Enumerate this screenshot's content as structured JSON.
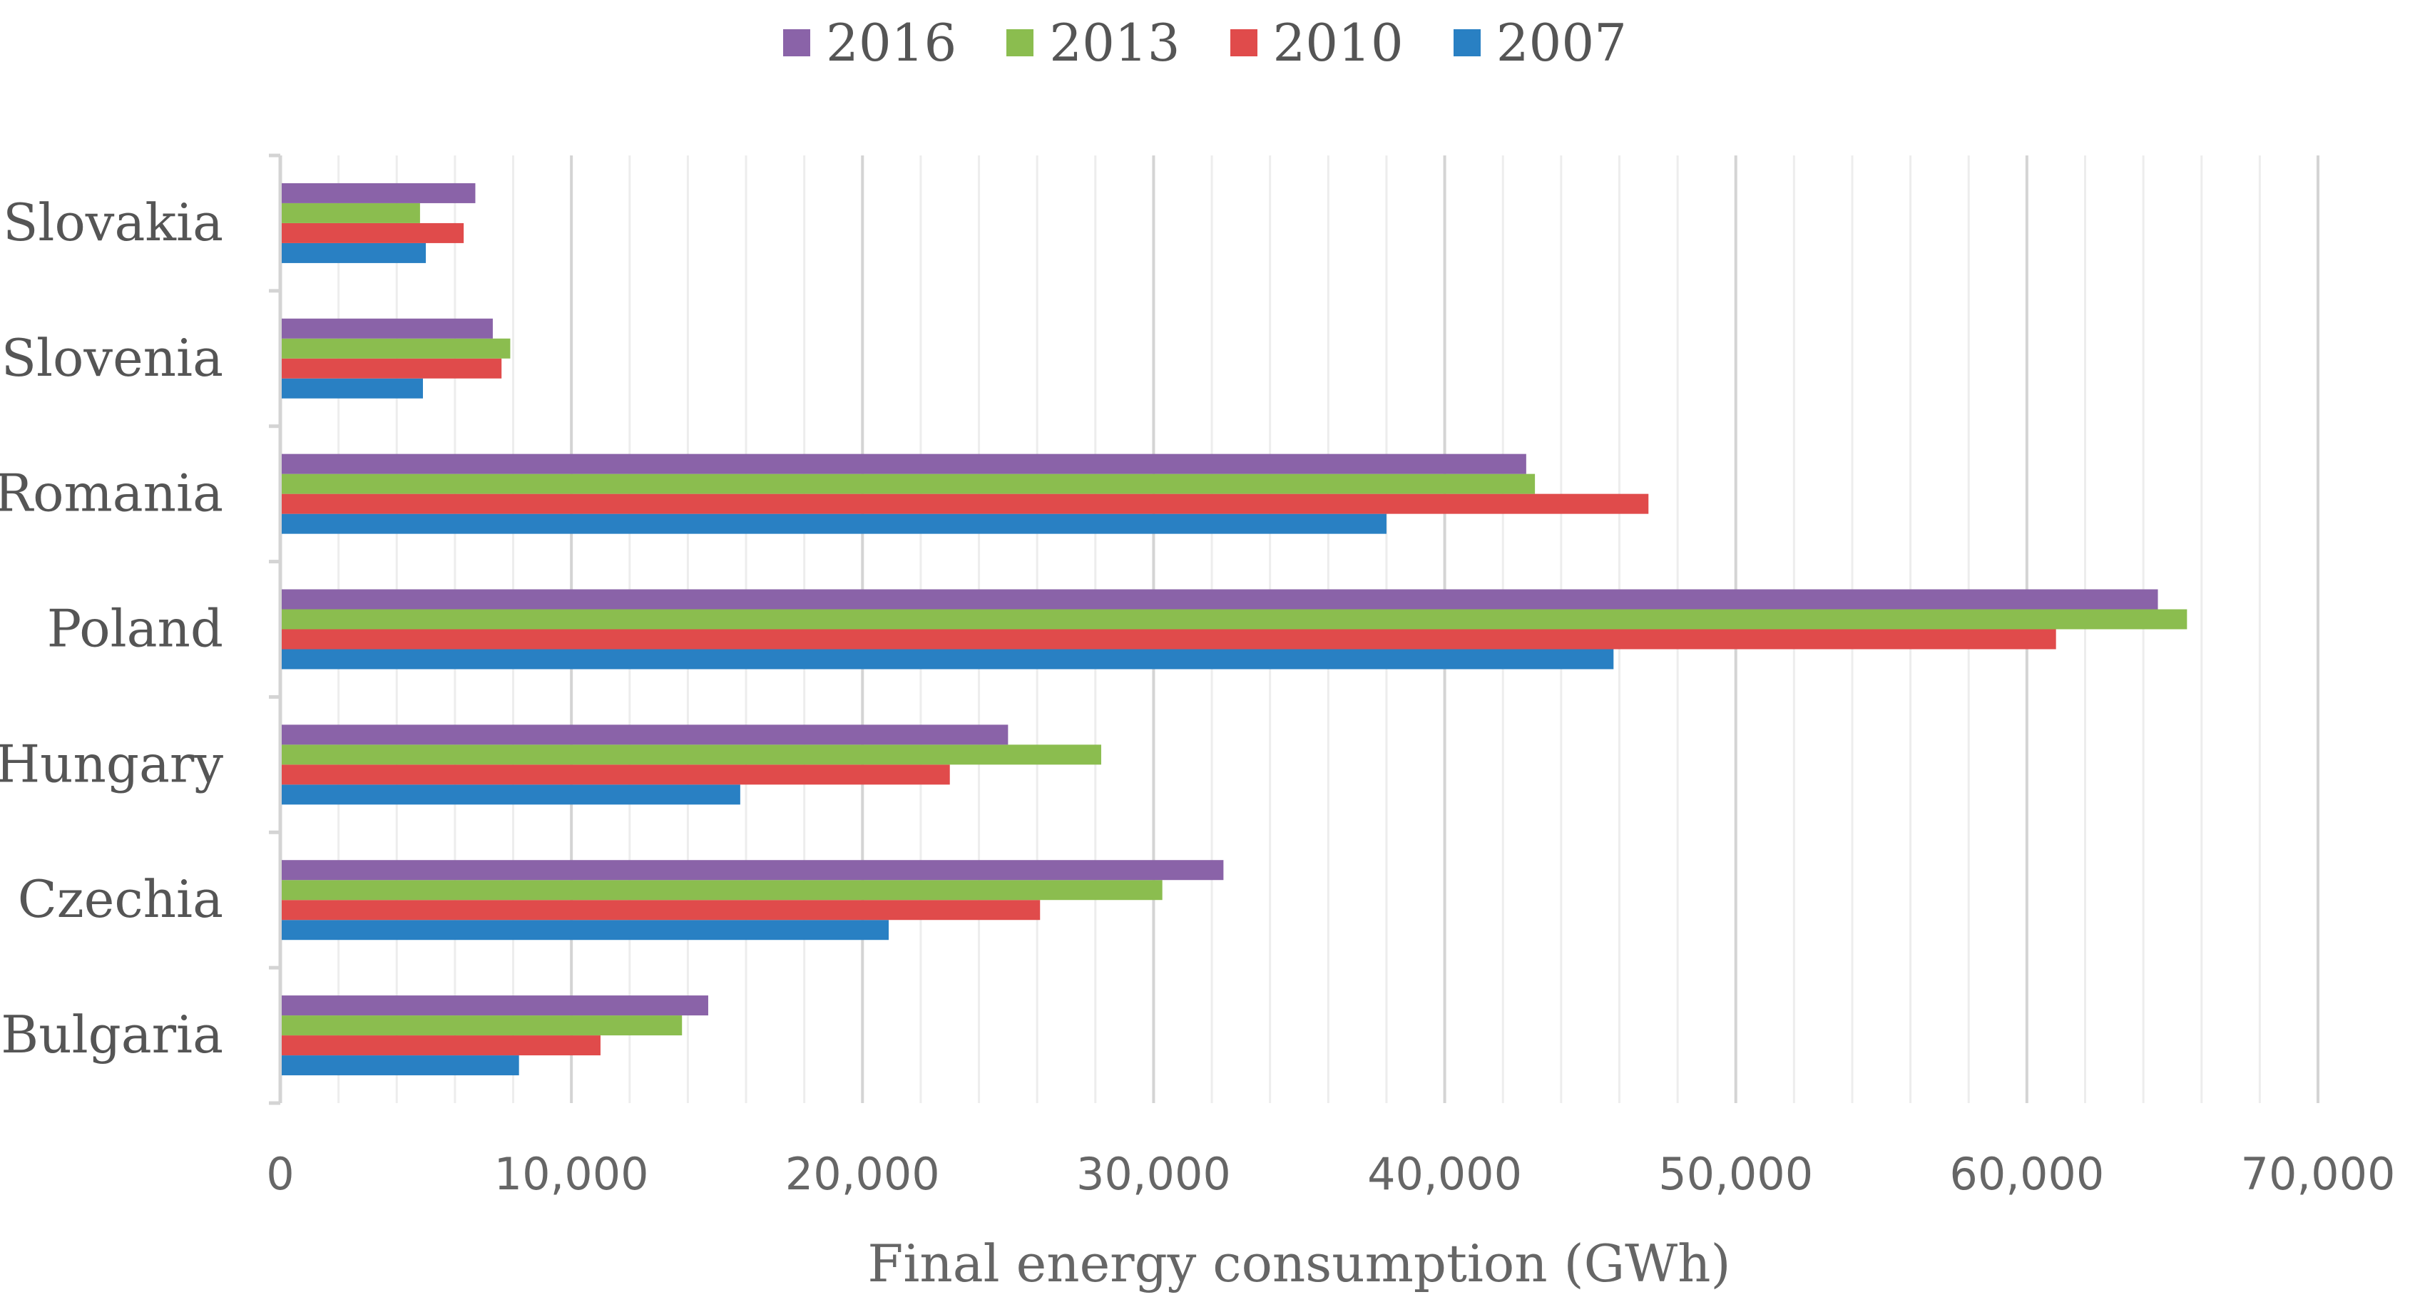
{
  "chart_data": {
    "type": "bar",
    "orientation": "horizontal",
    "categories": [
      "Bulgaria",
      "Czechia",
      "Hungary",
      "Poland",
      "Romania",
      "Slovenia",
      "Slovakia"
    ],
    "series": [
      {
        "name": "2007",
        "color": "#2980c3",
        "values": [
          8200,
          20900,
          15800,
          45800,
          38000,
          4900,
          5000
        ]
      },
      {
        "name": "2010",
        "color": "#e04b4b",
        "values": [
          11000,
          26100,
          23000,
          61000,
          47000,
          7600,
          6300
        ]
      },
      {
        "name": "2013",
        "color": "#8bbd4f",
        "values": [
          13800,
          30300,
          28200,
          65500,
          43100,
          7900,
          4800
        ]
      },
      {
        "name": "2016",
        "color": "#8a63a8",
        "values": [
          14700,
          32400,
          25000,
          64500,
          42800,
          7300,
          6700
        ]
      }
    ],
    "legend_order": [
      "2016",
      "2013",
      "2010",
      "2007"
    ],
    "xlabel": "Final energy consumption (GWh)",
    "ylabel": "",
    "xlim": [
      0,
      70000
    ],
    "xticks": [
      0,
      10000,
      20000,
      30000,
      40000,
      50000,
      60000,
      70000
    ],
    "xtick_labels": [
      "0",
      "10,000",
      "20,000",
      "30,000",
      "40,000",
      "50,000",
      "60,000",
      "70,000"
    ],
    "minor_step": 2000,
    "grid": true,
    "legend_position": "top"
  }
}
